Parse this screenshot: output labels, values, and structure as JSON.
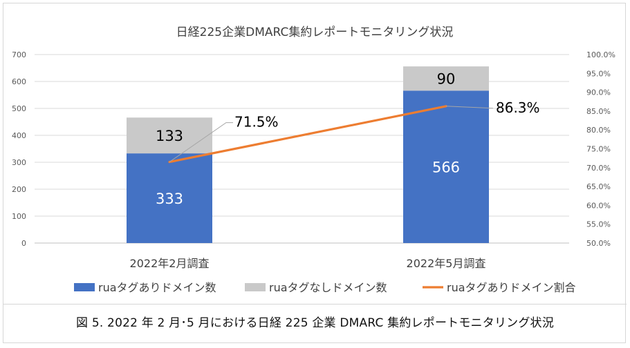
{
  "caption": "図 5. 2022 年 2 月･5 月における日経 225 企業 DMARC 集約レポートモニタリング状況",
  "chart_data": {
    "type": "bar",
    "stacked": true,
    "title": "日経225企業DMARC集約レポートモニタリング状況",
    "categories": [
      "2022年2月調査",
      "2022年5月調査"
    ],
    "series": [
      {
        "name": "ruaタグありドメイン数",
        "type": "bar",
        "axis": "left",
        "values": [
          333,
          566
        ],
        "color": "#4472C4"
      },
      {
        "name": "ruaタグなしドメイン数",
        "type": "bar",
        "axis": "left",
        "values": [
          133,
          90
        ],
        "color": "#C9C9C9"
      },
      {
        "name": "ruaタグありドメイン割合",
        "type": "line",
        "axis": "right",
        "values": [
          71.5,
          86.3
        ],
        "labels": [
          "71.5%",
          "86.3%"
        ],
        "color": "#ED7D31"
      }
    ],
    "left_axis": {
      "min": 0,
      "max": 700,
      "ticks": [
        "0",
        "100",
        "200",
        "300",
        "400",
        "500",
        "600",
        "700"
      ]
    },
    "right_axis": {
      "min": 50,
      "max": 100,
      "ticks": [
        "50.0%",
        "55.0%",
        "60.0%",
        "65.0%",
        "70.0%",
        "75.0%",
        "80.0%",
        "85.0%",
        "90.0%",
        "95.0%",
        "100.0%"
      ]
    },
    "legend_position": "bottom",
    "grid": true
  }
}
